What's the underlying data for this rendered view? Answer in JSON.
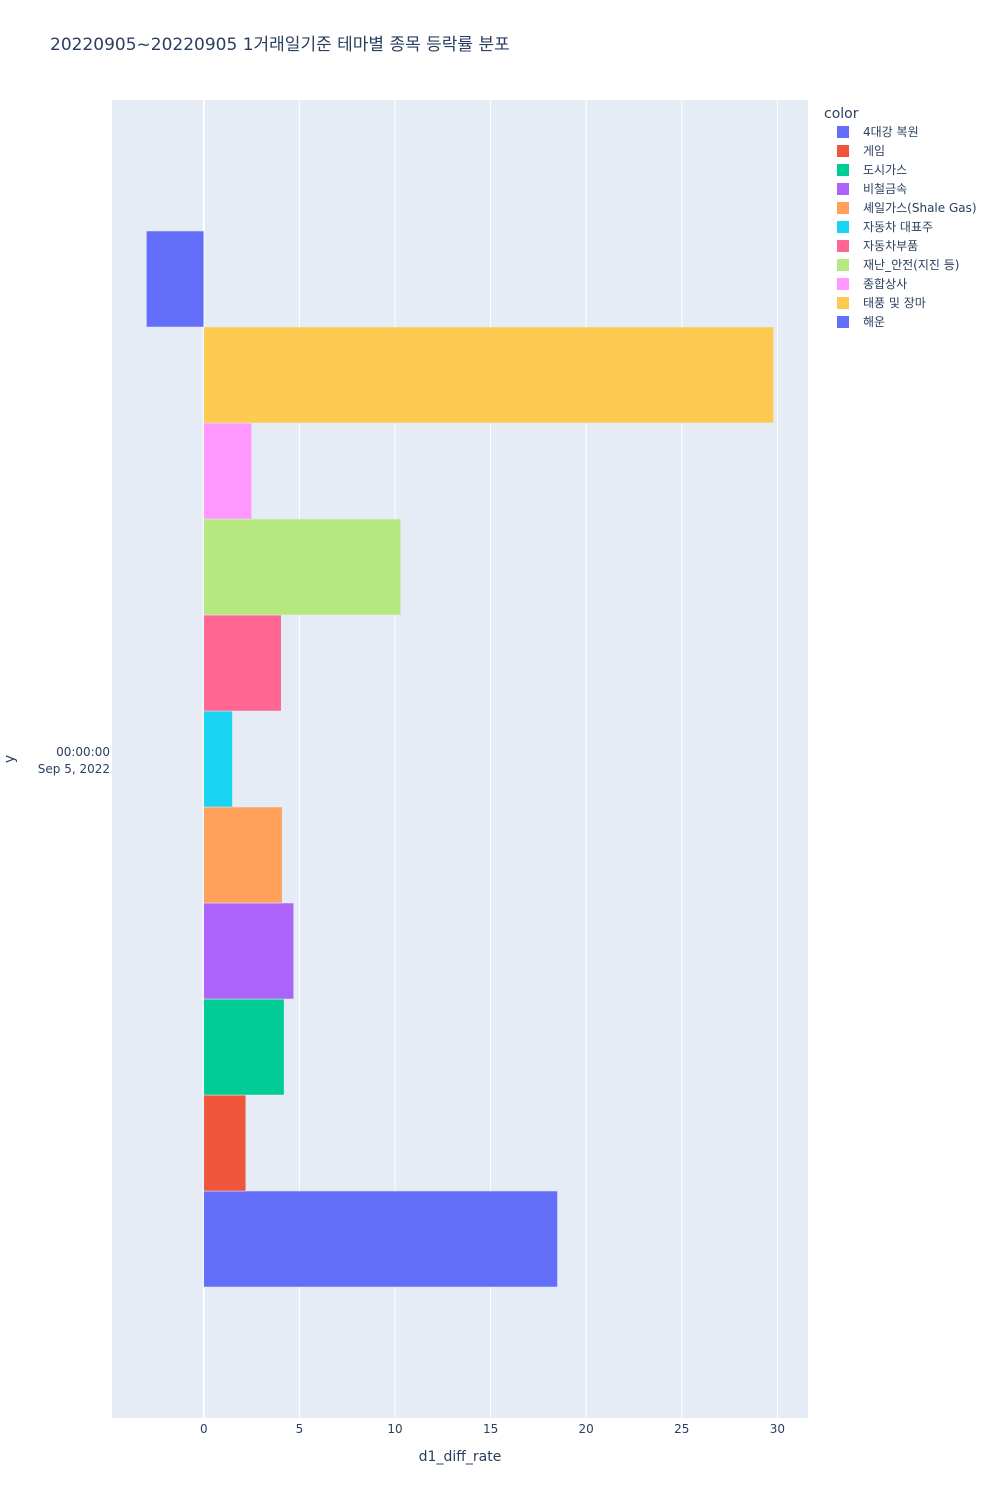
{
  "chart_data": {
    "type": "bar",
    "orientation": "horizontal",
    "title": "20220905~20220905 1거래일기준 테마별 종목 등락률 분포",
    "xlabel": "d1_diff_rate",
    "ylabel": "y",
    "y_tick_label": [
      "00:00:00",
      "Sep 5, 2022"
    ],
    "xlim": [
      -4.8,
      31.6
    ],
    "x_ticks": [
      0,
      5,
      10,
      15,
      20,
      25,
      30
    ],
    "grid": true,
    "legend_title": "color",
    "legend_position": "right",
    "series": [
      {
        "name": "4대강 복원",
        "color": "#636efa",
        "value": 18.5
      },
      {
        "name": "게임",
        "color": "#EF553B",
        "value": 2.2
      },
      {
        "name": "도시가스",
        "color": "#00cc96",
        "value": 4.2
      },
      {
        "name": "비철금속",
        "color": "#ab63fa",
        "value": 4.7
      },
      {
        "name": "셰일가스(Shale Gas)",
        "color": "#FFA15A",
        "value": 4.1
      },
      {
        "name": "자동차 대표주",
        "color": "#19d3f3",
        "value": 1.5
      },
      {
        "name": "자동차부품",
        "color": "#FF6692",
        "value": 4.05
      },
      {
        "name": "재난_안전(지진 등)",
        "color": "#B6E880",
        "value": 10.3
      },
      {
        "name": "종합상사",
        "color": "#FF97FF",
        "value": 2.5
      },
      {
        "name": "태풍 및 장마",
        "color": "#FECB52",
        "value": 29.8
      },
      {
        "name": "해운",
        "color": "#636efa",
        "value": -3.0
      }
    ]
  }
}
